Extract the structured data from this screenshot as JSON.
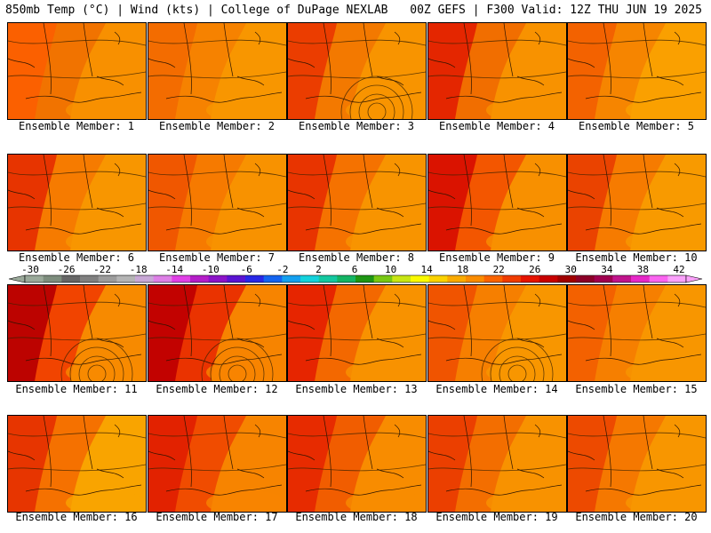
{
  "header": {
    "left": "850mb Temp (°C) | Wind (kts) | College of DuPage NEXLAB",
    "right": "00Z GEFS | F300 Valid: 12Z THU JUN 19 2025"
  },
  "panels": [
    {
      "label": "Ensemble Member: 1",
      "cold": "#fb5f00",
      "mid": "#f07000",
      "warm": "#f89000",
      "low": false
    },
    {
      "label": "Ensemble Member: 2",
      "cold": "#f26a00",
      "mid": "#f57f00",
      "warm": "#f89600",
      "low": false
    },
    {
      "label": "Ensemble Member: 3",
      "cold": "#ea3a00",
      "mid": "#f27600",
      "warm": "#f89400",
      "low": true
    },
    {
      "label": "Ensemble Member: 4",
      "cold": "#e32200",
      "mid": "#f06a00",
      "warm": "#f89200",
      "low": false
    },
    {
      "label": "Ensemble Member: 5",
      "cold": "#f26000",
      "mid": "#f58200",
      "warm": "#faa000",
      "low": false
    },
    {
      "label": "Ensemble Member: 6",
      "cold": "#e63000",
      "mid": "#f57800",
      "warm": "#f89600",
      "low": false
    },
    {
      "label": "Ensemble Member: 7",
      "cold": "#ef5500",
      "mid": "#f57800",
      "warm": "#f89200",
      "low": false
    },
    {
      "label": "Ensemble Member: 8",
      "cold": "#e73000",
      "mid": "#f46e00",
      "warm": "#f89400",
      "low": false
    },
    {
      "label": "Ensemble Member: 9",
      "cold": "#d81000",
      "mid": "#f25000",
      "warm": "#f89000",
      "low": false
    },
    {
      "label": "Ensemble Member: 10",
      "cold": "#e94000",
      "mid": "#f57800",
      "warm": "#f89a00",
      "low": false
    },
    {
      "label": "Ensemble Member: 11",
      "cold": "#b80000",
      "mid": "#ef3c00",
      "warm": "#f78a00",
      "low": true
    },
    {
      "label": "Ensemble Member: 12",
      "cold": "#c00000",
      "mid": "#e82a00",
      "warm": "#f78400",
      "low": true
    },
    {
      "label": "Ensemble Member: 13",
      "cold": "#e52200",
      "mid": "#f26400",
      "warm": "#f89200",
      "low": false
    },
    {
      "label": "Ensemble Member: 14",
      "cold": "#ef5200",
      "mid": "#f57c00",
      "warm": "#f89600",
      "low": true
    },
    {
      "label": "Ensemble Member: 15",
      "cold": "#f26000",
      "mid": "#f57c00",
      "warm": "#f89600",
      "low": false
    },
    {
      "label": "Ensemble Member: 16",
      "cold": "#e63200",
      "mid": "#f46c00",
      "warm": "#f9a400",
      "low": false
    },
    {
      "label": "Ensemble Member: 17",
      "cold": "#e02000",
      "mid": "#ee4600",
      "warm": "#f78400",
      "low": false
    },
    {
      "label": "Ensemble Member: 18",
      "cold": "#e62800",
      "mid": "#f05800",
      "warm": "#f88c00",
      "low": false
    },
    {
      "label": "Ensemble Member: 19",
      "cold": "#ea3c00",
      "mid": "#f26a00",
      "warm": "#f89200",
      "low": false
    },
    {
      "label": "Ensemble Member: 20",
      "cold": "#ec4800",
      "mid": "#f47400",
      "warm": "#f89600",
      "low": false
    }
  ],
  "colorbar": {
    "labels": [
      "-30",
      "-26",
      "-22",
      "-18",
      "-14",
      "-10",
      "-6",
      "-2",
      "2",
      "6",
      "10",
      "14",
      "18",
      "22",
      "26",
      "30",
      "34",
      "38",
      "42"
    ],
    "colors": [
      "#9aa99a",
      "#7d8d7d",
      "#666666",
      "#808080",
      "#9c9c9c",
      "#b4b4b4",
      "#c8a8d6",
      "#dd80e6",
      "#e040e6",
      "#b41ec8",
      "#8c14c8",
      "#5a14d2",
      "#2828e6",
      "#1464f0",
      "#14a0f0",
      "#14d2dc",
      "#14c8a0",
      "#14b464",
      "#1e9614",
      "#78c814",
      "#c8e614",
      "#fafa00",
      "#fad200",
      "#faaa00",
      "#fa8c00",
      "#fa6400",
      "#f03c00",
      "#e61400",
      "#c80000",
      "#a00000",
      "#8c0028",
      "#a00050",
      "#c0148c",
      "#e628c8",
      "#fa64f0",
      "#faa0fa"
    ]
  },
  "icons": {
    "arrow_left": "left-arrow-icon",
    "arrow_right": "right-arrow-icon"
  }
}
